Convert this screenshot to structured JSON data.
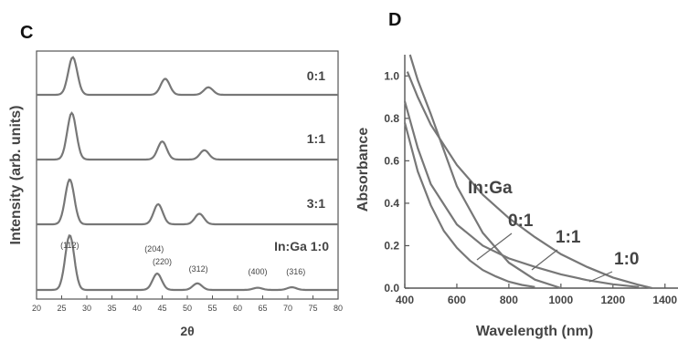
{
  "chart_data": [
    {
      "type": "line",
      "panel_label": "C",
      "xlabel": "2θ",
      "ylabel": "Intensity (arb. units)",
      "xlim": [
        20,
        80
      ],
      "x_ticks": [
        "20",
        "25",
        "30",
        "35",
        "40",
        "45",
        "50",
        "55",
        "60",
        "65",
        "70",
        "75",
        "80"
      ],
      "series": [
        {
          "name": "0:1",
          "label": "0:1",
          "peaks": [
            {
              "x": 27.2,
              "h": 0.75
            },
            {
              "x": 45.6,
              "h": 0.32
            },
            {
              "x": 54.2,
              "h": 0.15
            }
          ]
        },
        {
          "name": "1:1",
          "label": "1:1",
          "peaks": [
            {
              "x": 27.0,
              "h": 0.85
            },
            {
              "x": 45.0,
              "h": 0.33
            },
            {
              "x": 53.4,
              "h": 0.17
            }
          ]
        },
        {
          "name": "3:1",
          "label": "3:1",
          "peaks": [
            {
              "x": 26.6,
              "h": 0.85
            },
            {
              "x": 44.2,
              "h": 0.38
            },
            {
              "x": 52.4,
              "h": 0.2
            }
          ]
        },
        {
          "name": "In:Ga 1:0",
          "label": "In:Ga 1:0",
          "peaks": [
            {
              "x": 26.6,
              "h": 1.0
            },
            {
              "x": 44.0,
              "h": 0.3
            },
            {
              "x": 52.0,
              "h": 0.12
            },
            {
              "x": 64.0,
              "h": 0.04
            },
            {
              "x": 70.8,
              "h": 0.05
            }
          ]
        }
      ],
      "annotations": [
        {
          "text": "(112)",
          "x": 26.6
        },
        {
          "text": "(204)",
          "x": 43.4
        },
        {
          "text": "(220)",
          "x": 45.0
        },
        {
          "text": "(312)",
          "x": 52.2
        },
        {
          "text": "(400)",
          "x": 64.0
        },
        {
          "text": "(316)",
          "x": 71.6
        }
      ]
    },
    {
      "type": "line",
      "panel_label": "D",
      "xlabel": "Wavelength (nm)",
      "ylabel": "Absorbance",
      "xlim": [
        400,
        1450
      ],
      "ylim": [
        0,
        1.1
      ],
      "x_ticks": [
        "400",
        "600",
        "800",
        "1000",
        "1200",
        "1400"
      ],
      "y_ticks": [
        "0.0",
        "0.2",
        "0.4",
        "0.6",
        "0.8",
        "1.0"
      ],
      "legend_title": "In:Ga",
      "series": [
        {
          "name": "0:1",
          "points": [
            [
              400,
              0.78
            ],
            [
              450,
              0.55
            ],
            [
              500,
              0.39
            ],
            [
              550,
              0.27
            ],
            [
              600,
              0.19
            ],
            [
              650,
              0.13
            ],
            [
              700,
              0.085
            ],
            [
              750,
              0.055
            ],
            [
              800,
              0.03
            ],
            [
              850,
              0.015
            ],
            [
              900,
              0.005
            ]
          ]
        },
        {
          "name": "1:1",
          "points": [
            [
              400,
              0.88
            ],
            [
              450,
              0.66
            ],
            [
              500,
              0.49
            ],
            [
              600,
              0.3
            ],
            [
              700,
              0.2
            ],
            [
              800,
              0.14
            ],
            [
              900,
              0.1
            ],
            [
              1000,
              0.065
            ],
            [
              1100,
              0.038
            ],
            [
              1200,
              0.018
            ],
            [
              1300,
              0.005
            ]
          ]
        },
        {
          "name": "1:0",
          "points": [
            [
              410,
              1.02
            ],
            [
              450,
              0.9
            ],
            [
              500,
              0.77
            ],
            [
              600,
              0.58
            ],
            [
              700,
              0.44
            ],
            [
              800,
              0.33
            ],
            [
              900,
              0.24
            ],
            [
              1000,
              0.16
            ],
            [
              1100,
              0.1
            ],
            [
              1200,
              0.05
            ],
            [
              1300,
              0.015
            ],
            [
              1350,
              0.0
            ]
          ]
        }
      ],
      "extra_series": {
        "points": [
          [
            420,
            1.1
          ],
          [
            450,
            0.98
          ],
          [
            500,
            0.82
          ],
          [
            600,
            0.48
          ],
          [
            700,
            0.26
          ],
          [
            800,
            0.12
          ],
          [
            900,
            0.04
          ],
          [
            1000,
            0.0
          ]
        ]
      }
    }
  ]
}
